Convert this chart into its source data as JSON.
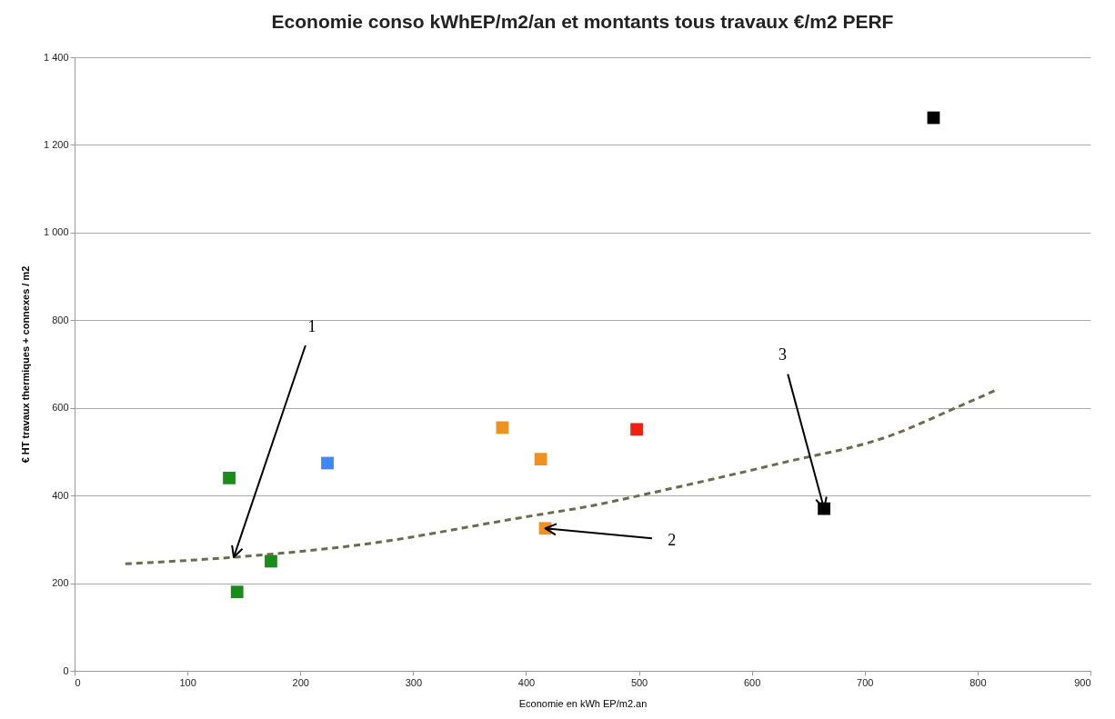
{
  "chart_data": {
    "type": "scatter",
    "title": "Economie conso kWhEP/m2/an et montants tous travaux €/m2 PERF",
    "xlabel": "Economie en kWh EP/m2.an",
    "ylabel": "€ HT travaux thermiques + connexes / m2",
    "marker": "square",
    "grid": "y",
    "xlim": [
      0,
      900
    ],
    "xticks": [
      0,
      100,
      200,
      300,
      400,
      500,
      600,
      700,
      800,
      900
    ],
    "ylim": [
      0,
      1400
    ],
    "yticks": [
      0,
      200,
      400,
      600,
      800,
      {
        "value": 1000,
        "label": "1 000"
      },
      {
        "value": 1200,
        "label": "1 200"
      },
      {
        "value": 1400,
        "label": "1 400"
      }
    ],
    "series": [
      {
        "x": [
          137,
          144,
          174,
          224,
          379,
          413,
          417,
          498,
          664,
          761
        ],
        "values": [
          440,
          180,
          250,
          474,
          555,
          483,
          325,
          551,
          370,
          1262
        ],
        "colors": [
          "#1a8c1a",
          "#1a8c1a",
          "#1a8c1a",
          "#4285f4",
          "#f0901e",
          "#f0901e",
          "#f0901e",
          "#f02010",
          "#000000",
          "#000000"
        ]
      },
      {
        "type": "line",
        "line_style": "dashed",
        "marker": "none",
        "color": "#6b6b50",
        "x": [
          45,
          145,
          263,
          381,
          406,
          459,
          504,
          626,
          721,
          785,
          815
        ],
        "values": [
          244,
          260,
          291,
          343,
          354,
          377,
          402,
          474,
          535,
          605,
          639
        ]
      }
    ],
    "annotations": [
      {
        "text": "1",
        "x": 141,
        "y": 259
      },
      {
        "text": "2",
        "x": 417,
        "y": 325
      },
      {
        "text": "3",
        "x": 664,
        "y": 370
      }
    ]
  }
}
